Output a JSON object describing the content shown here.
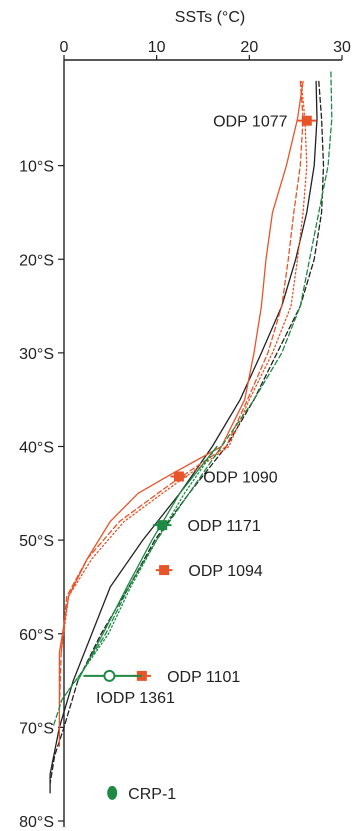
{
  "chart_data": {
    "type": "line",
    "title": "",
    "xlabel": "SSTs (°C)",
    "ylabel": "",
    "x_axis_position": "top",
    "xlim": [
      0,
      30
    ],
    "ylim": [
      0,
      80
    ],
    "x_ticks": [
      {
        "value": 0,
        "label": "0"
      },
      {
        "value": 10,
        "label": "10"
      },
      {
        "value": 20,
        "label": "20"
      },
      {
        "value": 30,
        "label": "30"
      }
    ],
    "y_ticks": [
      {
        "value": 10,
        "label": "10°S"
      },
      {
        "value": 20,
        "label": "20°S"
      },
      {
        "value": 30,
        "label": "30°S"
      },
      {
        "value": 40,
        "label": "40°S"
      },
      {
        "value": 50,
        "label": "50°S"
      },
      {
        "value": 60,
        "label": "60°S"
      },
      {
        "value": 70,
        "label": "70°S"
      },
      {
        "value": 80,
        "label": "80°S"
      }
    ],
    "grid": false,
    "series": [
      {
        "color": "#222222",
        "dash": "solid",
        "points": [
          [
            27.2,
            1
          ],
          [
            27.3,
            5
          ],
          [
            27,
            10
          ],
          [
            26.2,
            15
          ],
          [
            25,
            20
          ],
          [
            23.5,
            25
          ],
          [
            21.3,
            30
          ],
          [
            19,
            35
          ],
          [
            16,
            40
          ],
          [
            12.5,
            45
          ],
          [
            8.5,
            50
          ],
          [
            5,
            55
          ],
          [
            3,
            60
          ],
          [
            1,
            65
          ],
          [
            -0.5,
            70
          ],
          [
            -1.5,
            75
          ],
          [
            -1.5,
            77
          ]
        ]
      },
      {
        "color": "#222222",
        "dash": "dashed",
        "points": [
          [
            27.5,
            1
          ],
          [
            27.8,
            5
          ],
          [
            28,
            10
          ],
          [
            27.8,
            15
          ],
          [
            27,
            20
          ],
          [
            25.5,
            25
          ],
          [
            23,
            30
          ],
          [
            20.5,
            35
          ],
          [
            17.5,
            40
          ],
          [
            13.5,
            45
          ],
          [
            9.8,
            50
          ],
          [
            7,
            55
          ],
          [
            4,
            60
          ],
          [
            1.5,
            65
          ],
          [
            0,
            70
          ],
          [
            -1,
            73
          ],
          [
            -1.5,
            76
          ]
        ]
      },
      {
        "color": "#e8542a",
        "dash": "solid",
        "points": [
          [
            25.8,
            1
          ],
          [
            25.2,
            5
          ],
          [
            24,
            10
          ],
          [
            22.5,
            15
          ],
          [
            21.8,
            20
          ],
          [
            21.3,
            25
          ],
          [
            20.5,
            30
          ],
          [
            19.5,
            35
          ],
          [
            17,
            40
          ],
          [
            11.5,
            43
          ],
          [
            8,
            45
          ],
          [
            5,
            48
          ],
          [
            2.5,
            52
          ],
          [
            0.5,
            56
          ],
          [
            -0.5,
            62
          ],
          [
            -0.5,
            68
          ],
          [
            -0.5,
            72
          ]
        ]
      },
      {
        "color": "#e8542a",
        "dash": "dashed",
        "points": [
          [
            25.5,
            1
          ],
          [
            25.8,
            5
          ],
          [
            25.5,
            10
          ],
          [
            24.8,
            15
          ],
          [
            24.2,
            20
          ],
          [
            23.5,
            25
          ],
          [
            22,
            30
          ],
          [
            19.8,
            35
          ],
          [
            17.5,
            40
          ],
          [
            11.5,
            44
          ],
          [
            6,
            48
          ],
          [
            2.5,
            52
          ],
          [
            0.3,
            56
          ],
          [
            -0.3,
            62
          ],
          [
            -0.5,
            68
          ]
        ]
      },
      {
        "color": "#e8542a",
        "dash": "dotted",
        "points": [
          [
            25.6,
            1
          ],
          [
            26,
            5
          ],
          [
            26.2,
            10
          ],
          [
            25.8,
            15
          ],
          [
            25.2,
            20
          ],
          [
            24.5,
            25
          ],
          [
            22.5,
            30
          ],
          [
            20,
            35
          ],
          [
            17.8,
            40
          ],
          [
            12,
            44
          ],
          [
            6.5,
            48
          ],
          [
            3,
            52
          ],
          [
            0.5,
            56
          ],
          [
            -0.3,
            62
          ]
        ]
      },
      {
        "color": "#1e8a43",
        "dash": "dashed",
        "points": [
          [
            28.8,
            0
          ],
          [
            28.9,
            5
          ],
          [
            28.5,
            10
          ],
          [
            27.5,
            15
          ],
          [
            26.5,
            20
          ],
          [
            25.5,
            25
          ],
          [
            23.5,
            30
          ],
          [
            20.5,
            35
          ],
          [
            17,
            40
          ],
          [
            13.5,
            45
          ],
          [
            10,
            50
          ],
          [
            7,
            55
          ],
          [
            4.5,
            60
          ],
          [
            2,
            64
          ],
          [
            -0.2,
            67
          ],
          [
            -1.2,
            70
          ]
        ]
      },
      {
        "color": "#1e8a43",
        "dash": "solid",
        "points": [
          [
            16.5,
            40
          ],
          [
            12.5,
            45
          ],
          [
            9.5,
            50
          ],
          [
            6.8,
            55
          ],
          [
            4.2,
            60
          ],
          [
            1.5,
            65
          ]
        ]
      },
      {
        "color": "#1e8a43",
        "dash": "dotted",
        "points": [
          [
            16.5,
            40
          ],
          [
            13,
            45
          ],
          [
            10,
            50
          ],
          [
            7.2,
            55
          ],
          [
            4.8,
            60
          ],
          [
            2,
            64
          ],
          [
            0.5,
            66
          ]
        ]
      }
    ],
    "sites": [
      {
        "name": "ODP 1077",
        "temp": 26.2,
        "lat": 5.2,
        "err": 1,
        "marker": "square",
        "color": "#e8542a",
        "label_side": "left"
      },
      {
        "name": "ODP 1090",
        "temp": 12.4,
        "lat": 43.2,
        "err": 0.9,
        "marker": "square",
        "color": "#e8542a",
        "label_side": "right"
      },
      {
        "name": "ODP 1171",
        "temp": 10.6,
        "lat": 48.4,
        "err": 1,
        "marker": "square",
        "color": "#1e8a43",
        "label_side": "right"
      },
      {
        "name": "ODP 1094",
        "temp": 10.8,
        "lat": 53.2,
        "err": 0.9,
        "marker": "square",
        "color": "#e8542a",
        "label_side": "right"
      },
      {
        "name": "ODP 1101",
        "temp": 8.4,
        "lat": 64.5,
        "err": 1,
        "marker": "square",
        "color": "#e8542a",
        "label_side": "right"
      },
      {
        "name": "IODP 1361",
        "temp": 4.9,
        "lat": 64.5,
        "err_low": 2.8,
        "err_high": 3.5,
        "marker": "circle-open",
        "color": "#1e8a43",
        "label_side": "below"
      },
      {
        "name": "CRP-1",
        "temp": 5.2,
        "lat": 77.0,
        "marker": "ellipse-filled",
        "color": "#1e8a43",
        "label_side": "right"
      }
    ]
  }
}
